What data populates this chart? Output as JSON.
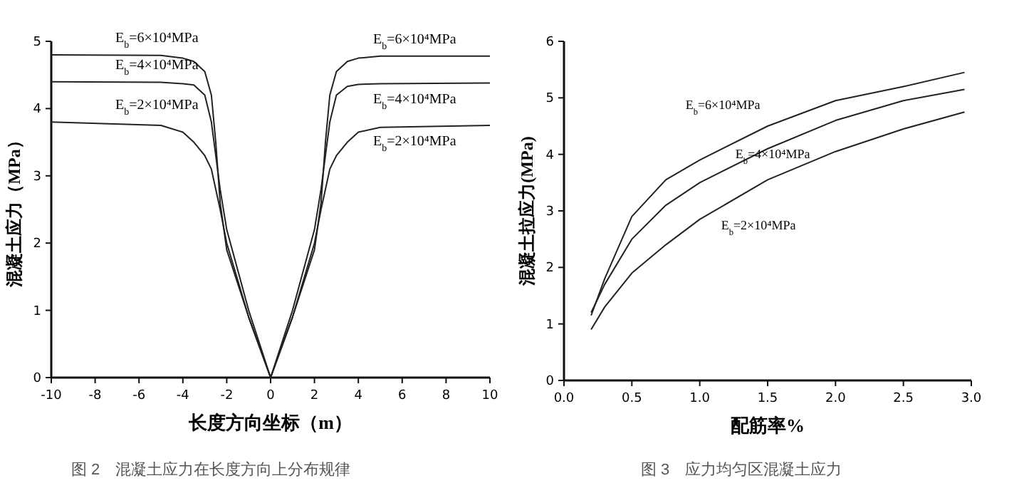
{
  "chart_data": [
    {
      "type": "line",
      "title": "图 2　混凝土应力在长度方向上分布规律",
      "xlabel": "长度方向坐标（m）",
      "ylabel": "混凝土应力（MPa）",
      "xlim": [
        -10,
        10
      ],
      "ylim": [
        0,
        5
      ],
      "xticks": [
        -10,
        -8,
        -6,
        -4,
        -2,
        0,
        2,
        4,
        6,
        8,
        10
      ],
      "yticks": [
        0,
        1,
        2,
        3,
        4,
        5
      ],
      "grid": false,
      "marker": "none",
      "line_style": "solid",
      "x": [
        -10,
        -5,
        -4,
        -3.5,
        -3,
        -2.7,
        -2.5,
        -2.3,
        -2,
        -1,
        0,
        1,
        2,
        2.3,
        2.5,
        2.7,
        3,
        3.5,
        4,
        5,
        10
      ],
      "series": [
        {
          "name": "E$_{b}$=6×10⁴MPa",
          "color": "#222222",
          "values": [
            4.8,
            4.79,
            4.75,
            4.7,
            4.55,
            4.2,
            3.5,
            2.6,
            1.9,
            0.9,
            0,
            0.9,
            1.9,
            2.6,
            3.5,
            4.2,
            4.55,
            4.7,
            4.75,
            4.78,
            4.78
          ]
        },
        {
          "name": "E$_{b}$=4×10⁴MPa",
          "color": "#222222",
          "values": [
            4.4,
            4.39,
            4.37,
            4.35,
            4.2,
            3.8,
            3.3,
            2.8,
            2.2,
            1.0,
            0,
            1.0,
            2.2,
            2.8,
            3.3,
            3.8,
            4.2,
            4.33,
            4.36,
            4.37,
            4.38
          ]
        },
        {
          "name": "E$_{b}$=2×10⁴MPa",
          "color": "#222222",
          "values": [
            3.8,
            3.75,
            3.65,
            3.5,
            3.3,
            3.1,
            2.8,
            2.5,
            2.0,
            0.9,
            0,
            0.9,
            2.0,
            2.5,
            2.8,
            3.1,
            3.3,
            3.5,
            3.65,
            3.72,
            3.75
          ]
        }
      ]
    },
    {
      "type": "line",
      "title": "图 3　应力均匀区混凝土应力",
      "xlabel": "配筋率%",
      "ylabel": "混凝土拉应力(MPa)",
      "xlim": [
        0,
        3
      ],
      "ylim": [
        0,
        6
      ],
      "xticks": [
        {
          "value": 0,
          "label": "0.0"
        },
        0.5,
        {
          "value": 1,
          "label": "1.0"
        },
        1.5,
        {
          "value": 2,
          "label": "2.0"
        },
        2.5,
        {
          "value": 3,
          "label": "3.0"
        }
      ],
      "yticks": [
        0,
        1,
        2,
        3,
        4,
        5,
        6
      ],
      "grid": false,
      "marker": "none",
      "line_style": "solid",
      "x": [
        0.2,
        0.3,
        0.5,
        0.75,
        1.0,
        1.5,
        2.0,
        2.5,
        2.95
      ],
      "series": [
        {
          "name": "E$_{b}$=6×10⁴MPa",
          "color": "#222222",
          "values": [
            1.15,
            1.8,
            2.9,
            3.55,
            3.9,
            4.5,
            4.95,
            5.2,
            5.45
          ]
        },
        {
          "name": "E$_{b}$=4×10⁴MPa",
          "color": "#222222",
          "values": [
            1.2,
            1.7,
            2.5,
            3.1,
            3.5,
            4.1,
            4.6,
            4.95,
            5.15
          ]
        },
        {
          "name": "E$_{b}$=2×10⁴MPa",
          "color": "#222222",
          "values": [
            0.9,
            1.3,
            1.9,
            2.4,
            2.85,
            3.55,
            4.05,
            4.45,
            4.75
          ]
        }
      ]
    }
  ]
}
